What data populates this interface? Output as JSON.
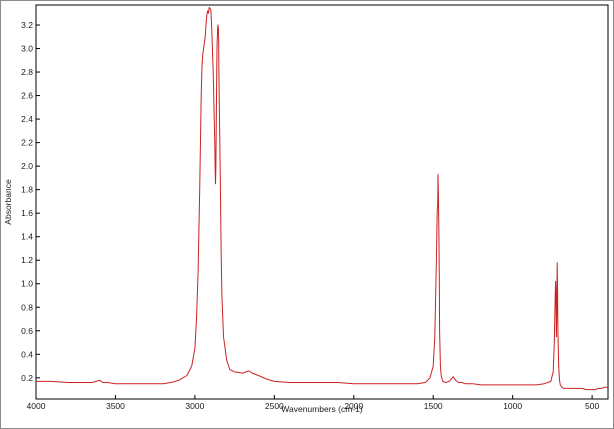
{
  "chart_data": {
    "type": "line",
    "title": "",
    "xlabel": "Wavenumbers (cm-1)",
    "ylabel": "Absorbance",
    "xlim": [
      4000,
      400
    ],
    "ylim": [
      0.02,
      3.37
    ],
    "x_reversed": true,
    "grid": false,
    "legend": "none",
    "x_ticks": [
      4000,
      3500,
      3000,
      2500,
      2000,
      1500,
      1000,
      500
    ],
    "x_tick_labels": [
      "4000",
      "3500",
      "3000",
      "2500",
      "2000",
      "1500",
      "1000",
      "500"
    ],
    "y_ticks": [
      0.2,
      0.4,
      0.6,
      0.8,
      1.0,
      1.2,
      1.4,
      1.6,
      1.8,
      2.0,
      2.2,
      2.4,
      2.6,
      2.8,
      3.0,
      3.2
    ],
    "y_tick_labels": [
      "0.2",
      "0.4",
      "0.6",
      "0.8",
      "1.0",
      "1.2",
      "1.4",
      "1.6",
      "1.8",
      "2.0",
      "2.2",
      "2.4",
      "2.6",
      "2.8",
      "3.0",
      "3.2"
    ],
    "line_color": "#cc2222",
    "series": [
      {
        "x": [
          4000,
          3900,
          3800,
          3700,
          3650,
          3620,
          3600,
          3580,
          3550,
          3500,
          3400,
          3300,
          3200,
          3150,
          3100,
          3050,
          3020,
          3000,
          2990,
          2980,
          2970,
          2960,
          2955,
          2950,
          2945,
          2940,
          2935,
          2930,
          2925,
          2920,
          2915,
          2910,
          2905,
          2900,
          2895,
          2890,
          2885,
          2880,
          2875,
          2872,
          2870,
          2868,
          2865,
          2862,
          2860,
          2857,
          2855,
          2852,
          2850,
          2848,
          2845,
          2840,
          2835,
          2830,
          2820,
          2800,
          2780,
          2750,
          2700,
          2660,
          2640,
          2600,
          2550,
          2500,
          2400,
          2300,
          2200,
          2100,
          2000,
          1900,
          1800,
          1700,
          1600,
          1550,
          1520,
          1500,
          1490,
          1480,
          1475,
          1472,
          1470,
          1467,
          1465,
          1462,
          1460,
          1455,
          1450,
          1440,
          1420,
          1400,
          1380,
          1375,
          1370,
          1365,
          1360,
          1350,
          1340,
          1320,
          1300,
          1250,
          1200,
          1100,
          1000,
          900,
          850,
          800,
          760,
          745,
          738,
          732,
          730,
          728,
          725,
          722,
          720,
          718,
          715,
          710,
          705,
          700,
          690,
          680,
          660,
          640,
          620,
          600,
          580,
          560,
          540,
          520,
          500,
          480,
          460,
          440,
          420,
          400
        ],
        "y": [
          0.17,
          0.17,
          0.16,
          0.16,
          0.16,
          0.17,
          0.18,
          0.16,
          0.16,
          0.15,
          0.15,
          0.15,
          0.15,
          0.16,
          0.18,
          0.22,
          0.3,
          0.45,
          0.7,
          1.1,
          1.8,
          2.6,
          2.85,
          2.95,
          3.0,
          3.05,
          3.1,
          3.2,
          3.28,
          3.32,
          3.3,
          3.35,
          3.34,
          3.33,
          3.2,
          3.0,
          2.8,
          2.5,
          2.2,
          1.95,
          1.85,
          2.0,
          2.4,
          2.85,
          3.05,
          3.15,
          3.2,
          3.17,
          3.05,
          2.7,
          2.4,
          1.9,
          1.3,
          0.9,
          0.55,
          0.35,
          0.27,
          0.25,
          0.24,
          0.26,
          0.24,
          0.22,
          0.19,
          0.17,
          0.16,
          0.16,
          0.16,
          0.16,
          0.15,
          0.15,
          0.15,
          0.15,
          0.15,
          0.16,
          0.2,
          0.3,
          0.55,
          1.2,
          1.62,
          1.68,
          1.93,
          1.7,
          1.5,
          1.05,
          0.6,
          0.3,
          0.22,
          0.17,
          0.16,
          0.17,
          0.2,
          0.21,
          0.2,
          0.19,
          0.18,
          0.17,
          0.16,
          0.16,
          0.15,
          0.15,
          0.14,
          0.14,
          0.14,
          0.14,
          0.14,
          0.15,
          0.17,
          0.25,
          0.5,
          0.9,
          1.02,
          0.95,
          0.55,
          0.8,
          1.18,
          1.0,
          0.6,
          0.3,
          0.18,
          0.14,
          0.12,
          0.11,
          0.11,
          0.11,
          0.11,
          0.11,
          0.11,
          0.11,
          0.1,
          0.1,
          0.1,
          0.1,
          0.11,
          0.11,
          0.12,
          0.12
        ]
      }
    ]
  }
}
